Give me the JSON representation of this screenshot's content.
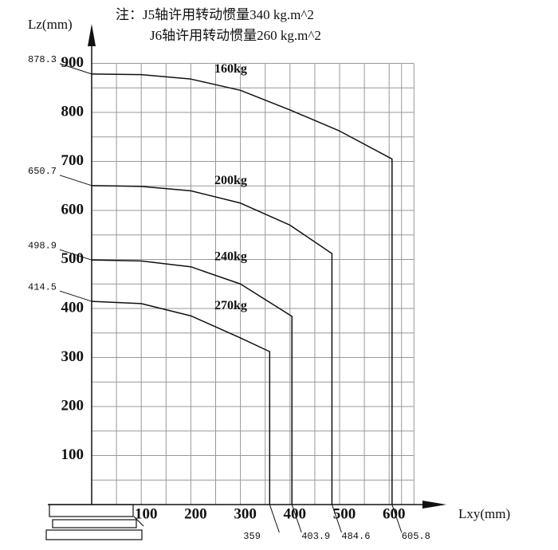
{
  "chart_data": {
    "type": "line",
    "notes": [
      "注：J5轴许用转动惯量340 kg.m^2",
      "J6轴许用转动惯量260 kg.m^2"
    ],
    "x_label": "Lxy(mm)",
    "y_label": "Lz(mm)",
    "xlim": [
      0,
      650
    ],
    "ylim": [
      0,
      900
    ],
    "xticks": [
      100,
      200,
      300,
      400,
      500,
      600
    ],
    "yticks": [
      100,
      200,
      300,
      400,
      500,
      600,
      700,
      800,
      900
    ],
    "grid": true,
    "series": [
      {
        "name": "160kg",
        "color": "#111111",
        "x": [
          0,
          100,
          200,
          300,
          400,
          500,
          605.8,
          605.8
        ],
        "values": [
          878.3,
          877,
          868,
          845,
          805,
          762,
          705,
          0
        ]
      },
      {
        "name": "200kg",
        "color": "#111111",
        "x": [
          0,
          100,
          200,
          300,
          400,
          484.6,
          484.6
        ],
        "values": [
          650.7,
          649,
          640,
          615,
          570,
          512,
          0
        ]
      },
      {
        "name": "240kg",
        "color": "#111111",
        "x": [
          0,
          100,
          200,
          300,
          403.9,
          403.9
        ],
        "values": [
          498.9,
          497,
          485,
          450,
          384,
          0
        ]
      },
      {
        "name": "270kg",
        "color": "#111111",
        "x": [
          0,
          100,
          200,
          300,
          359,
          359
        ],
        "values": [
          414.5,
          410,
          385,
          340,
          312,
          0
        ]
      }
    ]
  }
}
